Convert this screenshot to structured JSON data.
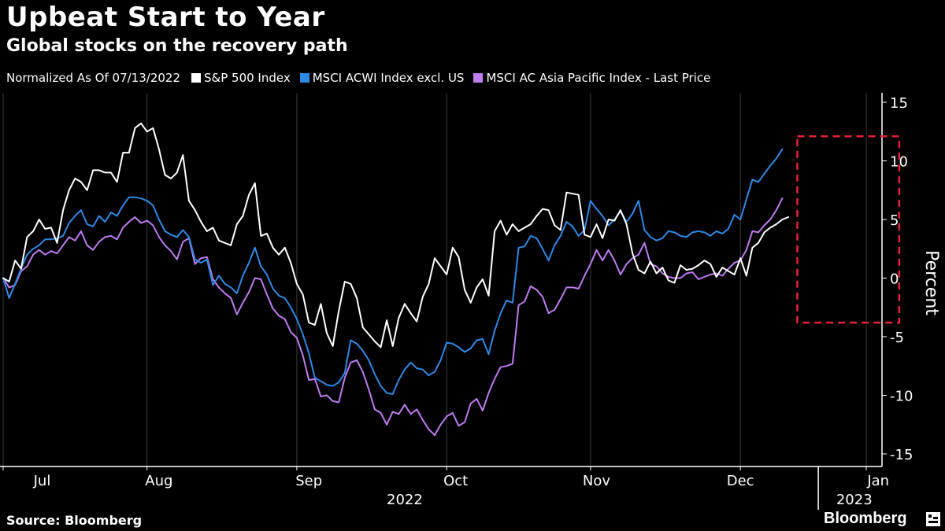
{
  "colors": {
    "background": "#000000",
    "sp500": "#ffffff",
    "acwi": "#2e8ae6",
    "asia": "#c07cf0",
    "highlight": "#e8223a",
    "axis": "#ffffff",
    "grid": "#3a3a3a"
  },
  "brand": {
    "name": "Bloomberg",
    "icon": "terminal-icon"
  },
  "chart_data": {
    "type": "line",
    "title": "Upbeat Start to Year",
    "subtitle": "Global stocks on the recovery path",
    "note": "Normalized As Of 07/13/2022",
    "source": "Source: Bloomberg",
    "xlabel": "",
    "ylabel": "Percent",
    "ylim": [
      -15,
      15
    ],
    "yticks": [
      15,
      10,
      5,
      0,
      -5,
      -10,
      -15
    ],
    "grid": false,
    "legend_position": "top-left",
    "x_range": [
      0,
      144
    ],
    "x_tick_positions": [
      0,
      24,
      49,
      74,
      98,
      123,
      136,
      144
    ],
    "month_labels": [
      {
        "label": "Jul",
        "x": 6.5
      },
      {
        "label": "Aug",
        "x": 26
      },
      {
        "label": "Sep",
        "x": 51
      },
      {
        "label": "Oct",
        "x": 75.5
      },
      {
        "label": "Nov",
        "x": 99
      },
      {
        "label": "Dec",
        "x": 123
      },
      {
        "label": "Jan",
        "x": 146
      }
    ],
    "year_labels": [
      {
        "label": "2022",
        "x": 67
      },
      {
        "label": "2023",
        "x": 142
      }
    ],
    "year_separator_x": 136,
    "highlight_box": {
      "x0": 132.5,
      "x1": 149.5,
      "y0": -3.8,
      "y1": 12.1
    },
    "series": [
      {
        "name": "S&P 500 Index",
        "values": [
          0.0,
          -0.3,
          1.5,
          0.8,
          3.5,
          4.0,
          5.0,
          4.2,
          4.3,
          3.0,
          5.8,
          7.5,
          8.5,
          8.2,
          7.5,
          9.2,
          9.2,
          9.0,
          9.0,
          8.2,
          10.7,
          10.7,
          12.8,
          13.2,
          12.5,
          12.8,
          11.0,
          8.8,
          8.5,
          9.0,
          10.5,
          6.6,
          5.8,
          4.8,
          4.0,
          4.3,
          3.2,
          3.0,
          2.8,
          4.6,
          5.3,
          7.1,
          8.1,
          3.6,
          3.8,
          2.6,
          2.0,
          2.6,
          1.3,
          -0.5,
          -1.4,
          -3.8,
          -4.0,
          -2.2,
          -4.7,
          -5.8,
          -2.8,
          -0.3,
          -0.5,
          -1.7,
          -4.2,
          -4.8,
          -5.4,
          -5.9,
          -3.6,
          -5.8,
          -3.4,
          -2.2,
          -3.0,
          -3.7,
          -1.6,
          -0.5,
          1.7,
          1.0,
          0.3,
          2.6,
          1.8,
          -1.0,
          -2.1,
          -0.8,
          -0.1,
          -1.5,
          4.0,
          4.9,
          3.7,
          4.6,
          4.0,
          4.3,
          4.6,
          5.3,
          5.9,
          5.8,
          4.5,
          4.1,
          7.3,
          7.2,
          7.1,
          3.7,
          3.5,
          4.6,
          3.4,
          5.0,
          4.9,
          5.8,
          4.6,
          2.1,
          0.7,
          0.4,
          1.4,
          0.4,
          0.9,
          -0.2,
          -0.4,
          1.1,
          0.7,
          0.8,
          1.1,
          1.5,
          1.2,
          0.1,
          0.9,
          0.6,
          0.3,
          1.7,
          0.2,
          2.6,
          3.0,
          3.9,
          4.3,
          4.6,
          5.0,
          5.2
        ],
        "color_key": "sp500"
      },
      {
        "name": "MSCI ACWI Index excl. US",
        "values": [
          0.0,
          -1.7,
          -0.5,
          0.8,
          2.0,
          2.5,
          2.8,
          3.3,
          3.3,
          3.4,
          3.6,
          4.7,
          5.3,
          5.8,
          4.6,
          4.4,
          5.3,
          4.8,
          5.6,
          5.3,
          6.2,
          6.9,
          6.9,
          6.8,
          6.6,
          6.2,
          5.0,
          4.0,
          3.7,
          3.5,
          4.1,
          3.5,
          1.6,
          1.3,
          1.6,
          -0.6,
          0.2,
          -0.5,
          -0.8,
          -1.3,
          0.2,
          1.3,
          2.6,
          1.0,
          0.3,
          -0.9,
          -1.5,
          -1.7,
          -2.5,
          -3.5,
          -4.8,
          -6.4,
          -8.5,
          -8.8,
          -9.1,
          -9.2,
          -8.9,
          -8.1,
          -5.3,
          -5.6,
          -6.2,
          -7.0,
          -8.2,
          -9.2,
          -9.8,
          -9.9,
          -8.7,
          -7.8,
          -7.2,
          -7.7,
          -7.8,
          -8.3,
          -8.0,
          -7.0,
          -5.5,
          -5.6,
          -5.9,
          -6.3,
          -6.0,
          -5.3,
          -5.2,
          -6.5,
          -4.5,
          -3.0,
          -1.9,
          -2.1,
          2.6,
          2.7,
          3.6,
          3.4,
          2.5,
          1.5,
          2.8,
          3.6,
          4.8,
          4.4,
          3.6,
          4.1,
          6.6,
          5.9,
          5.3,
          4.5,
          5.0,
          5.7,
          4.8,
          5.5,
          6.6,
          4.1,
          3.5,
          3.2,
          3.4,
          4.0,
          3.9,
          3.6,
          3.5,
          3.9,
          4.0,
          3.9,
          3.6,
          4.0,
          3.8,
          4.2,
          5.4,
          5.0,
          6.7,
          8.4,
          8.2,
          8.9,
          9.6,
          10.2,
          11.0
        ],
        "color_key": "acwi"
      },
      {
        "name": "MSCI AC Asia Pacific Index - Last Price",
        "values": [
          0.0,
          -0.8,
          -0.6,
          0.6,
          1.0,
          2.0,
          2.4,
          2.0,
          2.3,
          2.1,
          2.8,
          3.5,
          3.2,
          4.0,
          2.8,
          2.4,
          3.1,
          3.5,
          3.6,
          3.3,
          4.3,
          4.8,
          5.2,
          4.7,
          4.9,
          4.5,
          3.5,
          2.8,
          2.3,
          1.6,
          3.1,
          3.4,
          1.2,
          1.7,
          1.8,
          -0.1,
          -0.8,
          -1.3,
          -1.7,
          -3.1,
          -2.1,
          -1.2,
          0.0,
          -0.1,
          -1.4,
          -2.6,
          -3.2,
          -3.5,
          -4.6,
          -5.1,
          -6.6,
          -8.7,
          -8.6,
          -10.1,
          -10.0,
          -10.5,
          -10.6,
          -8.5,
          -7.2,
          -7.0,
          -8.0,
          -9.5,
          -11.2,
          -11.5,
          -12.5,
          -11.4,
          -11.6,
          -10.8,
          -11.6,
          -11.2,
          -12.1,
          -12.9,
          -13.4,
          -12.5,
          -11.8,
          -11.5,
          -12.6,
          -12.3,
          -10.7,
          -10.3,
          -11.3,
          -9.8,
          -8.6,
          -7.6,
          -7.5,
          -7.3,
          -2.3,
          -2.0,
          -0.7,
          -1.0,
          -1.6,
          -3.0,
          -2.7,
          -1.8,
          -0.8,
          -0.8,
          -0.9,
          0.2,
          1.2,
          2.4,
          1.5,
          2.4,
          1.5,
          0.3,
          1.2,
          1.7,
          2.0,
          3.0,
          1.2,
          1.0,
          0.4,
          0.1,
          0.0,
          0.0,
          0.4,
          0.5,
          -0.1,
          0.1,
          0.3,
          0.4,
          0.2,
          0.8,
          1.3,
          1.5,
          2.4,
          4.0,
          3.9,
          4.5,
          5.0,
          5.8,
          6.8
        ],
        "color_key": "asia"
      }
    ]
  }
}
